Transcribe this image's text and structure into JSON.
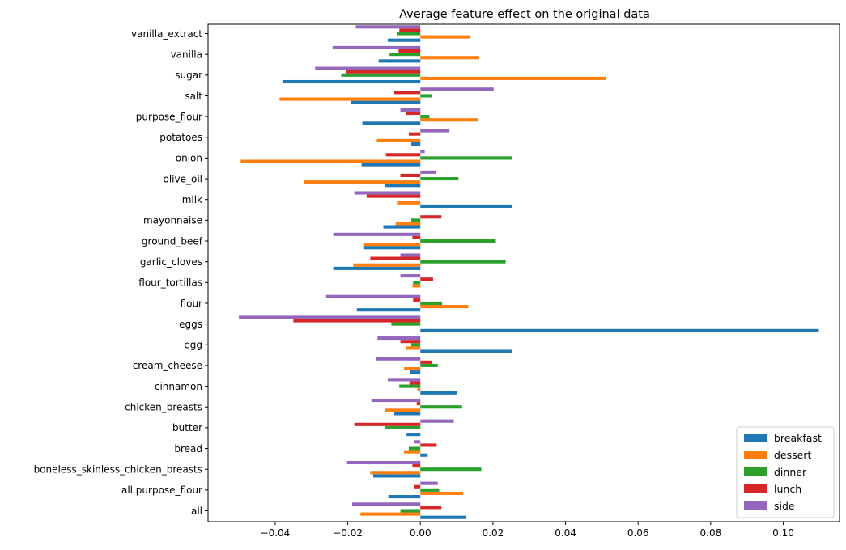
{
  "chart_data": {
    "type": "bar",
    "orientation": "horizontal",
    "title": "Average feature effect on the original data",
    "xlabel": "",
    "ylabel": "",
    "xlim": [
      -0.0585,
      0.1155
    ],
    "xticks": [
      -0.04,
      -0.02,
      0.0,
      0.02,
      0.04,
      0.06,
      0.08,
      0.1
    ],
    "xtick_labels": [
      "−0.04",
      "−0.02",
      "0.00",
      "0.02",
      "0.04",
      "0.06",
      "0.08",
      "0.10"
    ],
    "grid": false,
    "legend": "bottom-right",
    "categories": [
      "all",
      "all purpose_flour",
      "boneless_skinless_chicken_breasts",
      "bread",
      "butter",
      "chicken_breasts",
      "cinnamon",
      "cream_cheese",
      "egg",
      "eggs",
      "flour",
      "flour_tortillas",
      "garlic_cloves",
      "ground_beef",
      "mayonnaise",
      "milk",
      "olive_oil",
      "onion",
      "potatoes",
      "purpose_flour",
      "salt",
      "sugar",
      "vanilla",
      "vanilla_extract"
    ],
    "series": [
      {
        "name": "breakfast",
        "color": "#1f77b4",
        "values": [
          0.0125,
          -0.0088,
          -0.013,
          0.002,
          -0.0038,
          -0.0072,
          0.01,
          -0.0028,
          0.0252,
          0.1098,
          -0.0175,
          0.0,
          -0.024,
          -0.0155,
          -0.0102,
          0.0252,
          -0.0098,
          -0.0162,
          -0.0025,
          -0.016,
          -0.0192,
          -0.038,
          -0.0115,
          -0.009
        ]
      },
      {
        "name": "dessert",
        "color": "#ff7f0e",
        "values": [
          -0.0165,
          0.0118,
          -0.0138,
          -0.0045,
          0.0,
          -0.0098,
          -0.0008,
          -0.0045,
          -0.004,
          0.0,
          0.0132,
          -0.0022,
          -0.0185,
          -0.0155,
          -0.0068,
          -0.0062,
          -0.032,
          -0.0495,
          -0.012,
          0.0158,
          -0.0388,
          0.0512,
          0.0162,
          0.0138
        ]
      },
      {
        "name": "dinner",
        "color": "#2ca02c",
        "values": [
          -0.0055,
          0.0052,
          0.0168,
          -0.0032,
          -0.0098,
          0.0115,
          -0.0058,
          0.0048,
          -0.0025,
          -0.008,
          0.006,
          -0.002,
          0.0235,
          0.0208,
          -0.0025,
          0.0,
          0.0105,
          0.0252,
          0.0,
          0.0025,
          0.0032,
          -0.0218,
          -0.0085,
          -0.0065
        ]
      },
      {
        "name": "lunch",
        "color": "#d62728",
        "values": [
          0.0058,
          -0.0018,
          -0.0022,
          0.0045,
          -0.0182,
          -0.001,
          -0.003,
          0.0032,
          -0.0055,
          -0.035,
          -0.002,
          0.0035,
          -0.0138,
          -0.0022,
          0.0058,
          -0.0148,
          -0.0055,
          -0.0095,
          -0.0032,
          -0.004,
          -0.0072,
          -0.0205,
          -0.006,
          -0.0058
        ]
      },
      {
        "name": "side",
        "color": "#9467bd",
        "values": [
          -0.0188,
          0.0048,
          -0.0202,
          -0.0018,
          0.0092,
          -0.0135,
          -0.009,
          -0.0122,
          -0.0118,
          -0.05,
          -0.026,
          -0.0055,
          -0.0055,
          -0.024,
          0.0,
          -0.0182,
          0.0042,
          0.0012,
          0.008,
          -0.0055,
          0.0202,
          -0.029,
          -0.0242,
          -0.0178
        ]
      }
    ]
  }
}
